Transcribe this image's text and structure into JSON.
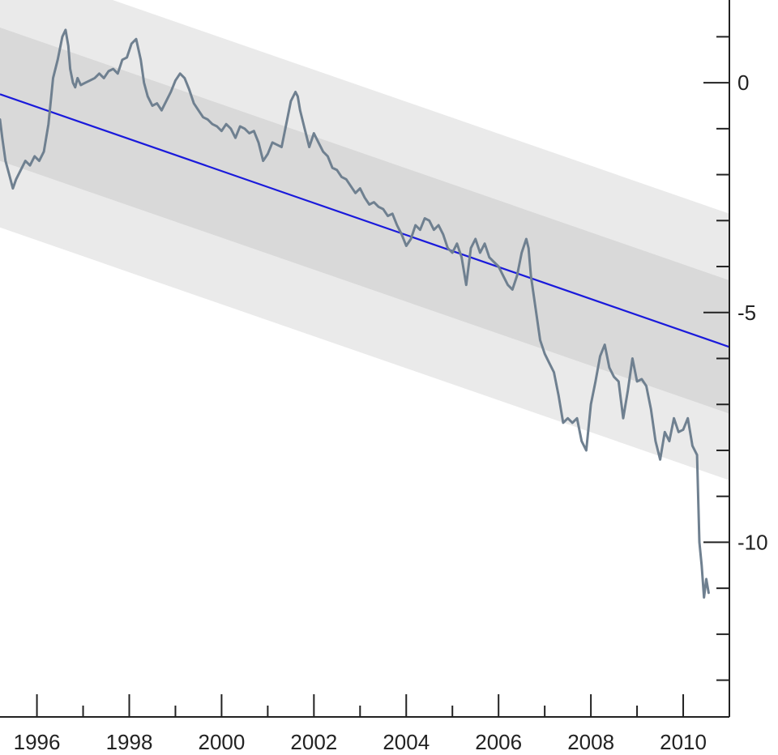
{
  "chart_data": {
    "type": "line",
    "title": "",
    "xlabel": "",
    "ylabel": "",
    "xlim": [
      1995.2,
      2011.0
    ],
    "ylim": [
      -13.8,
      1.8
    ],
    "grid": false,
    "x_ticks_major": [
      1996,
      1998,
      2000,
      2002,
      2004,
      2006,
      2008,
      2010
    ],
    "x_tick_labels": [
      "1996",
      "1998",
      "2000",
      "2002",
      "2004",
      "2006",
      "2008",
      "2010"
    ],
    "x_ticks_minor": [
      1997,
      1999,
      2001,
      2003,
      2005,
      2007,
      2009
    ],
    "y_ticks_major": [
      0,
      -5,
      -10
    ],
    "y_tick_labels": [
      "0",
      "-5",
      "-10"
    ],
    "y_ticks_minor": [
      1,
      -1,
      -2,
      -3,
      -4,
      -6,
      -7,
      -8,
      -9,
      -11,
      -12,
      -13
    ],
    "trend": {
      "x": [
        1995.2,
        2011.0
      ],
      "y": [
        -0.25,
        -5.75
      ]
    },
    "bands": [
      {
        "role": "outer",
        "color": "#eaeaea",
        "offset": 2.9
      },
      {
        "role": "inner",
        "color": "#d9d9d9",
        "offset": 1.45
      }
    ],
    "colors": {
      "series": "#6f8090",
      "trend": "#1a1adb"
    },
    "series": [
      {
        "x": [
          1995.2,
          1995.25,
          1995.32,
          1995.4,
          1995.48,
          1995.55,
          1995.65,
          1995.75,
          1995.85,
          1995.95,
          1996.05,
          1996.15,
          1996.25,
          1996.35,
          1996.45,
          1996.55,
          1996.62,
          1996.68,
          1996.72,
          1996.78,
          1996.83,
          1996.88,
          1996.95,
          1997.05,
          1997.15,
          1997.25,
          1997.35,
          1997.45,
          1997.55,
          1997.65,
          1997.75,
          1997.85,
          1997.95,
          1998.05,
          1998.15,
          1998.25,
          1998.32,
          1998.4,
          1998.5,
          1998.6,
          1998.7,
          1998.8,
          1998.9,
          1999.0,
          1999.1,
          1999.2,
          1999.3,
          1999.4,
          1999.5,
          1999.6,
          1999.7,
          1999.8,
          1999.9,
          2000.0,
          2000.1,
          2000.2,
          2000.3,
          2000.4,
          2000.5,
          2000.6,
          2000.7,
          2000.8,
          2000.9,
          2001.0,
          2001.1,
          2001.2,
          2001.3,
          2001.4,
          2001.5,
          2001.6,
          2001.65,
          2001.7,
          2001.8,
          2001.9,
          2002.0,
          2002.1,
          2002.2,
          2002.3,
          2002.4,
          2002.5,
          2002.6,
          2002.7,
          2002.8,
          2002.9,
          2003.0,
          2003.1,
          2003.2,
          2003.3,
          2003.4,
          2003.5,
          2003.6,
          2003.7,
          2003.8,
          2003.9,
          2004.0,
          2004.1,
          2004.2,
          2004.3,
          2004.4,
          2004.5,
          2004.6,
          2004.7,
          2004.8,
          2004.9,
          2005.0,
          2005.1,
          2005.2,
          2005.3,
          2005.4,
          2005.5,
          2005.6,
          2005.7,
          2005.8,
          2005.9,
          2006.0,
          2006.1,
          2006.2,
          2006.3,
          2006.4,
          2006.5,
          2006.6,
          2006.65,
          2006.7,
          2006.8,
          2006.9,
          2007.0,
          2007.1,
          2007.2,
          2007.3,
          2007.4,
          2007.5,
          2007.6,
          2007.7,
          2007.8,
          2007.9,
          2008.0,
          2008.1,
          2008.2,
          2008.3,
          2008.4,
          2008.5,
          2008.6,
          2008.7,
          2008.8,
          2008.9,
          2009.0,
          2009.1,
          2009.2,
          2009.3,
          2009.4,
          2009.5,
          2009.6,
          2009.7,
          2009.8,
          2009.9,
          2010.0,
          2010.1,
          2010.2,
          2010.3,
          2010.35,
          2010.4,
          2010.45,
          2010.5,
          2010.55
        ],
        "y": [
          -0.8,
          -1.2,
          -1.7,
          -2.0,
          -2.3,
          -2.1,
          -1.9,
          -1.7,
          -1.8,
          -1.6,
          -1.7,
          -1.5,
          -0.9,
          0.1,
          0.5,
          1.0,
          1.15,
          0.8,
          0.3,
          0.0,
          -0.1,
          0.1,
          -0.05,
          0.0,
          0.05,
          0.1,
          0.2,
          0.1,
          0.25,
          0.3,
          0.2,
          0.5,
          0.55,
          0.85,
          0.95,
          0.5,
          0.0,
          -0.3,
          -0.5,
          -0.45,
          -0.6,
          -0.4,
          -0.2,
          0.05,
          0.2,
          0.1,
          -0.15,
          -0.45,
          -0.6,
          -0.75,
          -0.8,
          -0.9,
          -0.95,
          -1.05,
          -0.9,
          -1.0,
          -1.2,
          -0.95,
          -1.0,
          -1.1,
          -1.05,
          -1.3,
          -1.7,
          -1.55,
          -1.3,
          -1.35,
          -1.4,
          -0.9,
          -0.4,
          -0.2,
          -0.3,
          -0.6,
          -1.0,
          -1.4,
          -1.1,
          -1.3,
          -1.5,
          -1.6,
          -1.85,
          -1.9,
          -2.05,
          -2.1,
          -2.25,
          -2.4,
          -2.3,
          -2.5,
          -2.65,
          -2.6,
          -2.7,
          -2.75,
          -2.9,
          -2.85,
          -3.1,
          -3.3,
          -3.55,
          -3.4,
          -3.1,
          -3.2,
          -2.95,
          -3.0,
          -3.2,
          -3.1,
          -3.3,
          -3.6,
          -3.7,
          -3.5,
          -3.8,
          -4.4,
          -3.6,
          -3.4,
          -3.7,
          -3.5,
          -3.8,
          -3.9,
          -4.0,
          -4.2,
          -4.4,
          -4.5,
          -4.2,
          -3.7,
          -3.4,
          -3.6,
          -4.2,
          -4.9,
          -5.6,
          -5.9,
          -6.1,
          -6.3,
          -6.8,
          -7.4,
          -7.3,
          -7.4,
          -7.3,
          -7.8,
          -8.0,
          -7.0,
          -6.5,
          -5.95,
          -5.7,
          -6.2,
          -6.4,
          -6.5,
          -7.3,
          -6.7,
          -6.0,
          -6.5,
          -6.45,
          -6.6,
          -7.1,
          -7.8,
          -8.2,
          -7.6,
          -7.8,
          -7.3,
          -7.6,
          -7.55,
          -7.3,
          -7.9,
          -8.1,
          -10.0,
          -10.5,
          -11.2,
          -10.8,
          -11.1
        ]
      }
    ]
  }
}
